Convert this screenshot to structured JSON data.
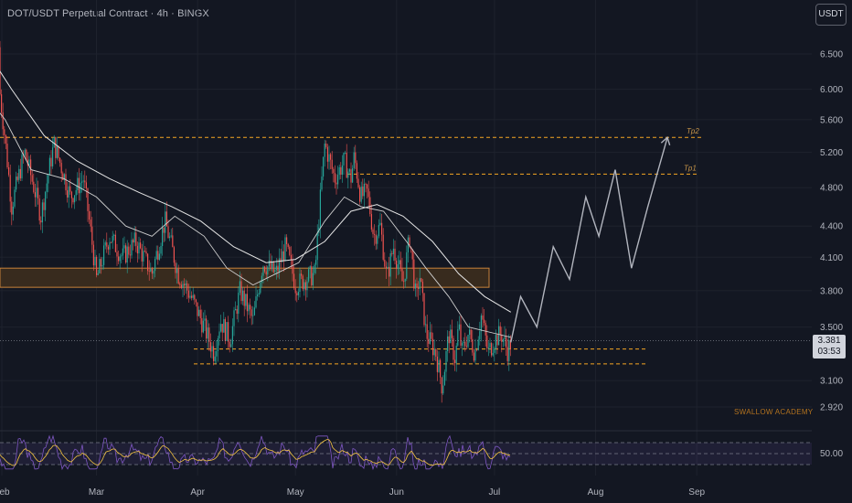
{
  "header": {
    "title": "DOT/USDT Perpetual Contract · 4h · BINGX",
    "currency": "USDT"
  },
  "watermark": "SWALLOW ACADEMY",
  "last_price": {
    "price": "3.381",
    "countdown": "03:53"
  },
  "rsi": {
    "label": "50.00"
  },
  "colors": {
    "background": "#131722",
    "up": "#26a69a",
    "down": "#ef5350",
    "dashed_level": "#f5a623",
    "zone_fill": "#3d2e1e",
    "projection": "#b2b5be",
    "rsi_line": "#7e57c2",
    "rsi_signal": "#f5c542"
  },
  "chart_data": {
    "type": "line",
    "price_scale": "log",
    "y_ticks": [
      "6.500",
      "6.000",
      "5.600",
      "5.200",
      "4.800",
      "4.400",
      "4.100",
      "3.800",
      "3.500",
      "3.100",
      "2.920"
    ],
    "x_ticks": [
      "Feb",
      "Mar",
      "Apr",
      "May",
      "Jun",
      "Jul",
      "Aug",
      "Sep"
    ],
    "levels": [
      {
        "label": "Tp2",
        "value": 5.38
      },
      {
        "label": "Tp1",
        "value": 4.95
      },
      {
        "label": "",
        "value": 3.33
      },
      {
        "label": "",
        "value": 3.22
      }
    ],
    "zone": {
      "low": 3.83,
      "high": 4.0
    },
    "price_path": {
      "x": [
        "2024-01-25",
        "2024-01-31",
        "2024-02-04",
        "2024-02-08",
        "2024-02-13",
        "2024-02-17",
        "2024-02-22",
        "2024-02-26",
        "2024-03-01",
        "2024-03-05",
        "2024-03-09",
        "2024-03-13",
        "2024-03-18",
        "2024-03-22",
        "2024-03-26",
        "2024-03-30",
        "2024-04-03",
        "2024-04-06",
        "2024-04-08",
        "2024-04-11",
        "2024-04-14",
        "2024-04-18",
        "2024-04-21",
        "2024-04-25",
        "2024-04-28",
        "2024-05-01",
        "2024-05-04",
        "2024-05-07",
        "2024-05-10",
        "2024-05-13",
        "2024-05-16",
        "2024-05-18",
        "2024-05-19",
        "2024-05-21",
        "2024-05-23",
        "2024-05-25",
        "2024-05-27",
        "2024-05-29",
        "2024-05-31",
        "2024-06-03",
        "2024-06-05",
        "2024-06-07",
        "2024-06-08",
        "2024-06-10",
        "2024-06-13",
        "2024-06-15",
        "2024-06-17",
        "2024-06-19",
        "2024-06-20",
        "2024-06-21",
        "2024-06-23",
        "2024-06-25",
        "2024-06-27",
        "2024-06-29",
        "2024-07-01",
        "2024-07-03",
        "2024-07-05",
        "2024-07-06"
      ],
      "y": [
        6.6,
        6.1,
        4.6,
        5.2,
        4.5,
        5.3,
        4.7,
        4.9,
        3.9,
        4.3,
        4.1,
        4.25,
        3.95,
        4.45,
        3.95,
        3.75,
        3.5,
        3.3,
        3.55,
        3.4,
        3.8,
        3.55,
        4.05,
        3.95,
        4.2,
        3.85,
        3.9,
        3.95,
        5.3,
        4.9,
        5.1,
        4.9,
        5.15,
        4.7,
        4.75,
        4.3,
        4.4,
        3.9,
        4.2,
        3.85,
        4.3,
        3.7,
        3.95,
        3.45,
        3.3,
        3.05,
        3.45,
        3.25,
        3.52,
        3.3,
        3.45,
        3.3,
        3.6,
        3.3,
        3.4,
        3.45,
        3.32,
        3.38
      ]
    },
    "projection": {
      "x": [
        "2024-07-06",
        "2024-07-09",
        "2024-07-14",
        "2024-07-19",
        "2024-07-24",
        "2024-07-29",
        "2024-08-02",
        "2024-08-07",
        "2024-08-12",
        "2024-08-17",
        "2024-08-23"
      ],
      "y": [
        3.38,
        3.75,
        3.5,
        4.2,
        3.9,
        4.7,
        4.3,
        5.0,
        4.0,
        4.6,
        5.38
      ]
    },
    "sma_fast": {
      "x": [
        "2024-01-24",
        "2024-02-02",
        "2024-02-10",
        "2024-02-20",
        "2024-03-01",
        "2024-03-10",
        "2024-03-18",
        "2024-03-25",
        "2024-04-03",
        "2024-04-10",
        "2024-04-18",
        "2024-04-25",
        "2024-05-02",
        "2024-05-10",
        "2024-05-16",
        "2024-05-21",
        "2024-05-28",
        "2024-06-04",
        "2024-06-10",
        "2024-06-17",
        "2024-06-23",
        "2024-07-01",
        "2024-07-06"
      ],
      "y": [
        6.1,
        5.6,
        5.0,
        4.9,
        4.7,
        4.4,
        4.3,
        4.5,
        4.3,
        4.0,
        3.85,
        3.95,
        4.05,
        4.45,
        4.7,
        4.6,
        4.55,
        4.25,
        4.0,
        3.75,
        3.5,
        3.45,
        3.42
      ]
    },
    "sma_slow": {
      "x": [
        "2024-01-24",
        "2024-02-04",
        "2024-02-14",
        "2024-02-24",
        "2024-03-05",
        "2024-03-14",
        "2024-03-24",
        "2024-04-02",
        "2024-04-12",
        "2024-04-22",
        "2024-05-01",
        "2024-05-10",
        "2024-05-18",
        "2024-05-26",
        "2024-06-03",
        "2024-06-12",
        "2024-06-20",
        "2024-06-28",
        "2024-07-06"
      ],
      "y": [
        6.8,
        6.0,
        5.4,
        5.1,
        4.9,
        4.75,
        4.6,
        4.45,
        4.2,
        4.05,
        4.08,
        4.25,
        4.55,
        4.62,
        4.5,
        4.25,
        3.95,
        3.75,
        3.62
      ]
    },
    "rsi_band": {
      "upper": 70,
      "middle": 50,
      "lower": 30
    }
  }
}
